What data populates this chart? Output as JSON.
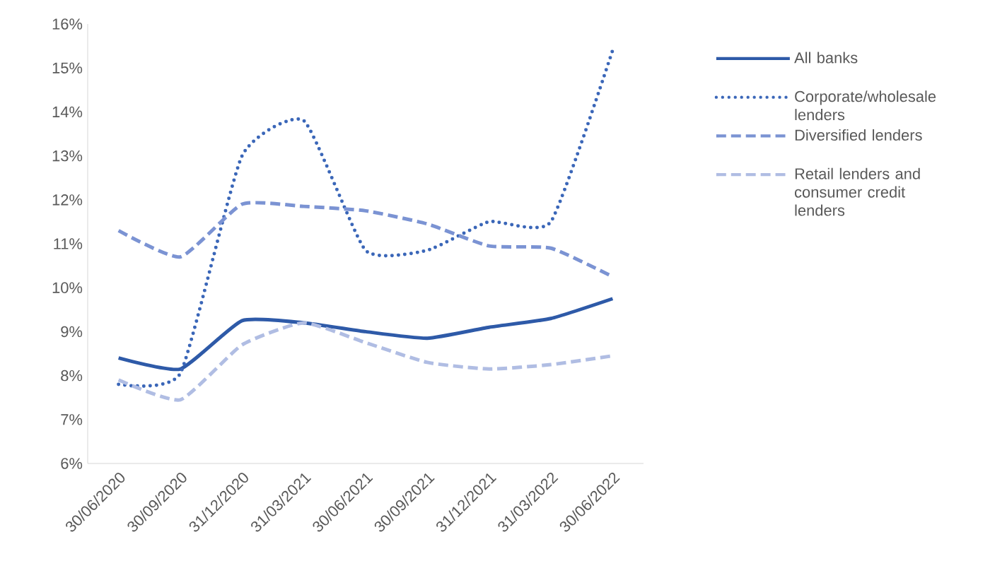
{
  "chart_data": {
    "type": "line",
    "categories": [
      "30/06/2020",
      "30/09/2020",
      "31/12/2020",
      "31/03/2021",
      "30/06/2021",
      "30/09/2021",
      "31/12/2021",
      "31/03/2022",
      "30/06/2022"
    ],
    "series": [
      {
        "name": "All banks",
        "color": "#2e5aa8",
        "line_style": "solid",
        "values": [
          8.4,
          8.15,
          9.25,
          9.2,
          9.0,
          8.85,
          9.1,
          9.3,
          9.75
        ]
      },
      {
        "name": "Corporate/wholesale lenders",
        "color": "#3a66b8",
        "line_style": "dotted",
        "values": [
          7.8,
          8.05,
          13.0,
          13.8,
          10.85,
          10.85,
          11.5,
          11.5,
          15.4
        ]
      },
      {
        "name": "Diversified lenders",
        "color": "#7b93d3",
        "line_style": "dashed",
        "values": [
          11.3,
          10.7,
          11.9,
          11.85,
          11.75,
          11.45,
          10.95,
          10.9,
          10.25
        ]
      },
      {
        "name": "Retail lenders and consumer credit lenders",
        "color": "#b0bde3",
        "line_style": "dashed",
        "values": [
          7.9,
          7.45,
          8.7,
          9.2,
          8.75,
          8.3,
          8.15,
          8.25,
          8.45
        ]
      }
    ],
    "ylim": [
      6,
      16
    ],
    "yticks": [
      {
        "value": 6,
        "label": "6%"
      },
      {
        "value": 7,
        "label": "7%"
      },
      {
        "value": 8,
        "label": "8%"
      },
      {
        "value": 9,
        "label": "9%"
      },
      {
        "value": 10,
        "label": "10%"
      },
      {
        "value": 11,
        "label": "11%"
      },
      {
        "value": 12,
        "label": "12%"
      },
      {
        "value": 13,
        "label": "13%"
      },
      {
        "value": 14,
        "label": "14%"
      },
      {
        "value": 15,
        "label": "15%"
      },
      {
        "value": 16,
        "label": "16%"
      }
    ],
    "grid": false,
    "legend": "right"
  }
}
